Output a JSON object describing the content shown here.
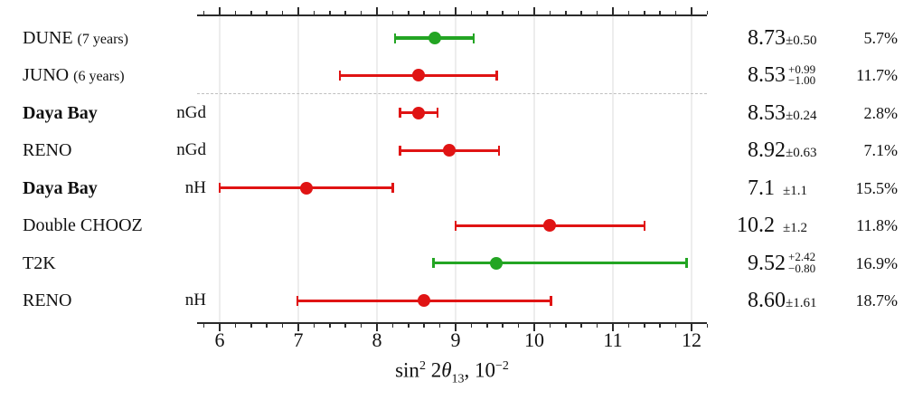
{
  "chart_data": {
    "type": "errorbar",
    "title": "",
    "xlabel": {
      "fn": "sin",
      "fn_exp": "2",
      "arg": "2",
      "sym": "θ",
      "sym_sub": "13",
      "sep": ",",
      "scale": "10",
      "scale_exp": "−2"
    },
    "xlim": [
      5.71,
      12.2
    ],
    "xticks": [
      6,
      7,
      8,
      9,
      10,
      11,
      12
    ],
    "minor_tick_step": 0.2,
    "grid": true,
    "legend": "none",
    "separator_after_index": 1,
    "colors": {
      "green": "#23a523",
      "red": "#e01414",
      "grid": "#ededed",
      "separator": "#bfbfbf",
      "spine": "#2b2b2b"
    },
    "rows": [
      {
        "experiment": "DUNE",
        "qualifier": "(7 years)",
        "detector": "",
        "bold": false,
        "color": "green",
        "value": 8.73,
        "low": 8.23,
        "high": 9.23,
        "value_text": "8.73",
        "unc": "±0.50",
        "unc_plus": "",
        "unc_minus": "",
        "unc_gap": false,
        "percent": "5.7%"
      },
      {
        "experiment": "JUNO",
        "qualifier": "(6 years)",
        "detector": "",
        "bold": false,
        "color": "red",
        "value": 8.53,
        "low": 7.53,
        "high": 9.52,
        "value_text": "8.53",
        "unc": "",
        "unc_plus": "+0.99",
        "unc_minus": "−1.00",
        "unc_gap": false,
        "percent": "11.7%"
      },
      {
        "experiment": "Daya Bay",
        "qualifier": "",
        "detector": "nGd",
        "bold": true,
        "color": "red",
        "value": 8.53,
        "low": 8.29,
        "high": 8.77,
        "value_text": "8.53",
        "unc": "±0.24",
        "unc_plus": "",
        "unc_minus": "",
        "unc_gap": false,
        "percent": "2.8%"
      },
      {
        "experiment": "RENO",
        "qualifier": "",
        "detector": "nGd",
        "bold": false,
        "color": "red",
        "value": 8.92,
        "low": 8.29,
        "high": 9.55,
        "value_text": "8.92",
        "unc": "±0.63",
        "unc_plus": "",
        "unc_minus": "",
        "unc_gap": false,
        "percent": "7.1%"
      },
      {
        "experiment": "Daya Bay",
        "qualifier": "",
        "detector": "nH",
        "bold": true,
        "color": "red",
        "value": 7.1,
        "low": 6.0,
        "high": 8.2,
        "value_text": "7.1",
        "unc": "±1.1",
        "unc_plus": "",
        "unc_minus": "",
        "unc_gap": true,
        "percent": "15.5%"
      },
      {
        "experiment": "Double CHOOZ",
        "qualifier": "",
        "detector": "",
        "bold": false,
        "color": "red",
        "value": 10.2,
        "low": 9.0,
        "high": 11.4,
        "value_text": "10.2",
        "unc": "±1.2",
        "unc_plus": "",
        "unc_minus": "",
        "unc_gap": true,
        "percent": "11.8%"
      },
      {
        "experiment": "T2K",
        "qualifier": "",
        "detector": "",
        "bold": false,
        "color": "green",
        "value": 9.52,
        "low": 8.72,
        "high": 11.94,
        "value_text": "9.52",
        "unc": "",
        "unc_plus": "+2.42",
        "unc_minus": "−0.80",
        "unc_gap": false,
        "percent": "16.9%"
      },
      {
        "experiment": "RENO",
        "qualifier": "",
        "detector": "nH",
        "bold": false,
        "color": "red",
        "value": 8.6,
        "low": 6.99,
        "high": 10.21,
        "value_text": "8.60",
        "unc": "±1.61",
        "unc_plus": "",
        "unc_minus": "",
        "unc_gap": false,
        "percent": "18.7%"
      }
    ]
  }
}
